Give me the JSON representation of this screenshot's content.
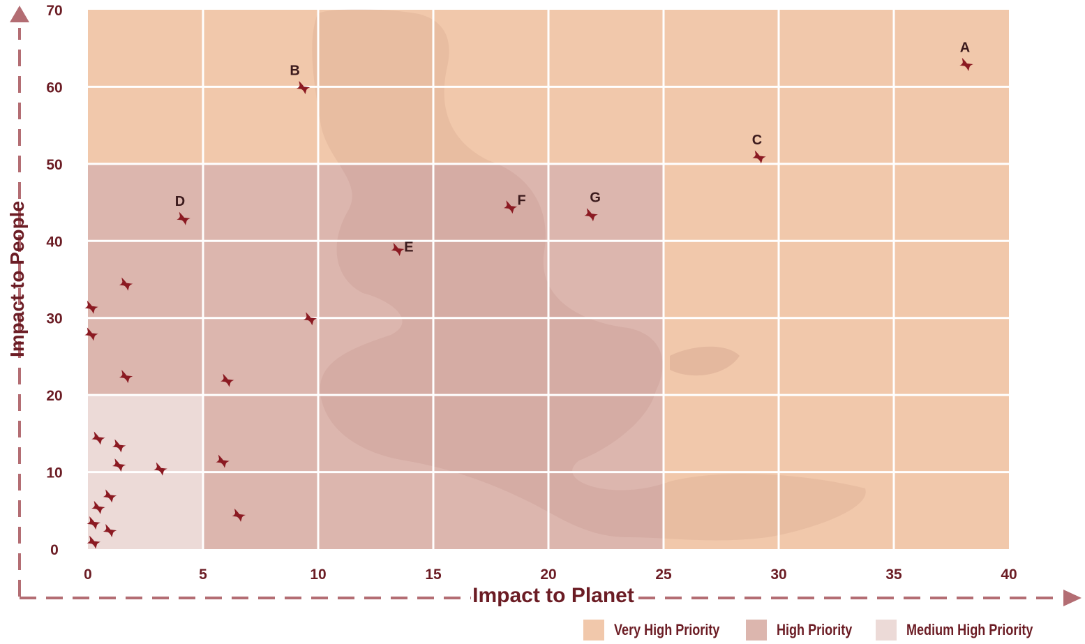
{
  "chart_data": {
    "type": "scatter",
    "title": "",
    "xlabel": "Impact to Planet",
    "ylabel": "Impact to People",
    "xlim": [
      0,
      40
    ],
    "ylim": [
      0,
      70
    ],
    "x_ticks": [
      "0",
      "5",
      "10",
      "15",
      "20",
      "25",
      "30",
      "35",
      "40"
    ],
    "y_ticks": [
      "0",
      "10",
      "20",
      "30",
      "40",
      "50",
      "60",
      "70"
    ],
    "grid": true,
    "legend_position": "bottom-right",
    "zones": [
      {
        "name": "Very High Priority",
        "color": "#f1c8ab"
      },
      {
        "name": "High Priority",
        "color": "#dcb6ae"
      },
      {
        "name": "Medium High Priority",
        "color": "#ecdad7"
      }
    ],
    "marker_color": "#8b1a22",
    "points": [
      {
        "label": "A",
        "x": 38,
        "y": 63
      },
      {
        "label": "B",
        "x": 9.2,
        "y": 60
      },
      {
        "label": "C",
        "x": 29,
        "y": 51
      },
      {
        "label": "D",
        "x": 4,
        "y": 43
      },
      {
        "label": "E",
        "x": 13.3,
        "y": 39
      },
      {
        "label": "F",
        "x": 18.2,
        "y": 44.5
      },
      {
        "label": "G",
        "x": 21.7,
        "y": 43.5
      },
      {
        "label": "",
        "x": 1.5,
        "y": 34.5
      },
      {
        "label": "",
        "x": 0,
        "y": 31.5
      },
      {
        "label": "",
        "x": 9.5,
        "y": 30
      },
      {
        "label": "",
        "x": 0,
        "y": 28
      },
      {
        "label": "",
        "x": 1.5,
        "y": 22.5
      },
      {
        "label": "",
        "x": 5.9,
        "y": 22
      },
      {
        "label": "",
        "x": 0.3,
        "y": 14.5
      },
      {
        "label": "",
        "x": 1.2,
        "y": 13.5
      },
      {
        "label": "",
        "x": 1.2,
        "y": 11
      },
      {
        "label": "",
        "x": 3,
        "y": 10.5
      },
      {
        "label": "",
        "x": 5.7,
        "y": 11.5
      },
      {
        "label": "",
        "x": 0.8,
        "y": 7
      },
      {
        "label": "",
        "x": 0.3,
        "y": 5.5
      },
      {
        "label": "",
        "x": 6.4,
        "y": 4.5
      },
      {
        "label": "",
        "x": 0.1,
        "y": 3.5
      },
      {
        "label": "",
        "x": 0.8,
        "y": 2.5
      },
      {
        "label": "",
        "x": 0.1,
        "y": 1
      }
    ]
  }
}
